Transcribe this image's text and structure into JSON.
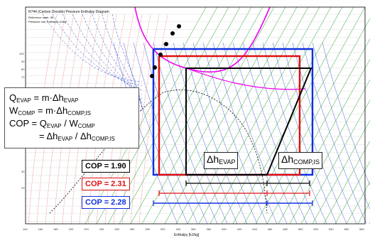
{
  "header": {
    "title": "R744 (Carbon Dioxide) Pressure Enthalpy Diagram",
    "lines": [
      "Reference state: IIR",
      "Pressure: bar, Enthalpy: kJ/kg"
    ]
  },
  "axes": {
    "x_label": "Enthalpy [kJ/kg]",
    "x_ticks": [
      "140",
      "160",
      "180",
      "200",
      "220",
      "240",
      "260",
      "280",
      "300",
      "320",
      "340",
      "360",
      "380",
      "400",
      "420",
      "440",
      "460",
      "480",
      "500",
      "520",
      "540",
      "560",
      "580"
    ],
    "y_ticks": [
      "100",
      "90",
      "80",
      "70",
      "30",
      "20"
    ]
  },
  "equations": {
    "q_main": "Q",
    "q_sub": "EVAP",
    "q_eq": " = m·Δh",
    "q_eq_sub": "EVAP",
    "w_main": "W",
    "w_sub": "COMP",
    "w_eq": " = m·Δh",
    "w_eq_sub": "COMP,IS",
    "cop_main": "COP = Q",
    "cop_sub1": "EVAP",
    "cop_mid": " / W",
    "cop_sub2": "COMP",
    "cop2_main": "= Δh",
    "cop2_sub1": "EVAP",
    "cop2_mid": " / Δh",
    "cop2_sub2": "COMP,IS"
  },
  "cop_values": [
    {
      "text": "COP = 1.90",
      "color": "#000000"
    },
    {
      "text": "COP = 2.31",
      "color": "#e01010"
    },
    {
      "text": "COP = 2.28",
      "color": "#1030e0"
    }
  ],
  "labels": {
    "dh_evap_main": "Δh",
    "dh_evap_sub": "EVAP",
    "dh_comp_main": "Δh",
    "dh_comp_sub": "COMP,IS"
  },
  "colors": {
    "black_cycle": "#000000",
    "red_cycle": "#e01010",
    "blue_cycle": "#1030e0",
    "magenta": "#ee00ee",
    "grid_green": "#20a020",
    "grid_blue": "#3050d0",
    "grid_red": "#e05050"
  }
}
